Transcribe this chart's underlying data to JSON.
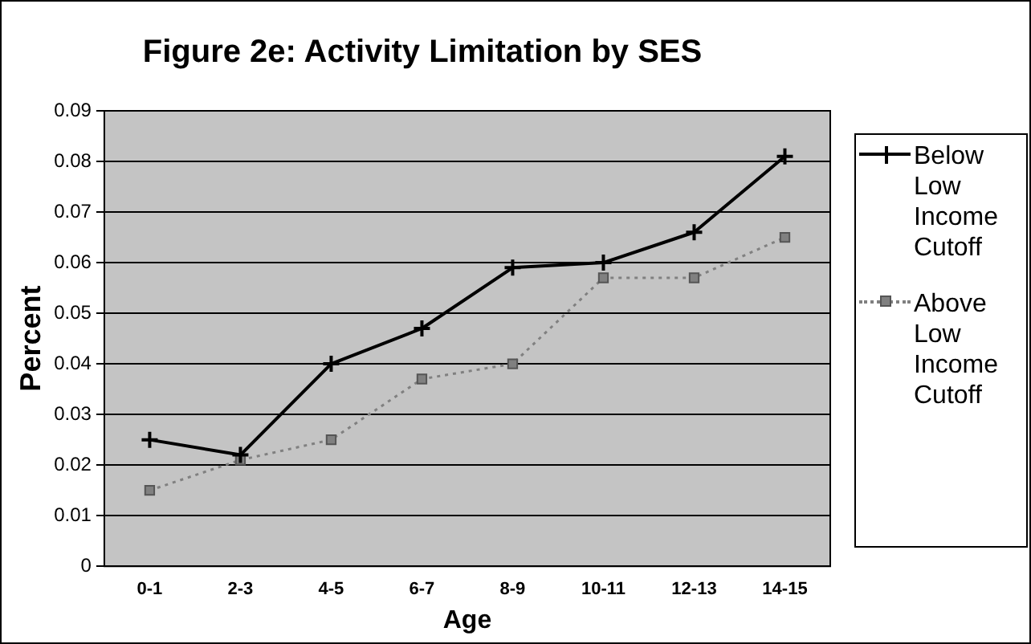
{
  "chart_data": {
    "type": "line",
    "title": "Figure 2e: Activity Limitation by SES",
    "xlabel": "Age",
    "ylabel": "Percent",
    "categories": [
      "0-1",
      "2-3",
      "4-5",
      "6-7",
      "8-9",
      "10-11",
      "12-13",
      "14-15"
    ],
    "series": [
      {
        "name": "Below Low Income Cutoff",
        "color": "#000000",
        "marker": "cross",
        "line_style": "solid",
        "values": [
          0.025,
          0.022,
          0.04,
          0.047,
          0.059,
          0.06,
          0.066,
          0.081
        ]
      },
      {
        "name": "Above Low Income Cutoff",
        "color": "#808080",
        "marker": "square",
        "line_style": "dotted",
        "values": [
          0.015,
          0.021,
          0.025,
          0.037,
          0.04,
          0.057,
          0.057,
          0.065
        ]
      }
    ],
    "ylim": [
      0,
      0.09
    ],
    "yticks": [
      "0",
      0.01,
      0.02,
      0.03,
      0.04,
      0.05,
      0.06,
      0.07,
      0.08,
      0.09
    ],
    "grid": "y",
    "legend": "right"
  }
}
